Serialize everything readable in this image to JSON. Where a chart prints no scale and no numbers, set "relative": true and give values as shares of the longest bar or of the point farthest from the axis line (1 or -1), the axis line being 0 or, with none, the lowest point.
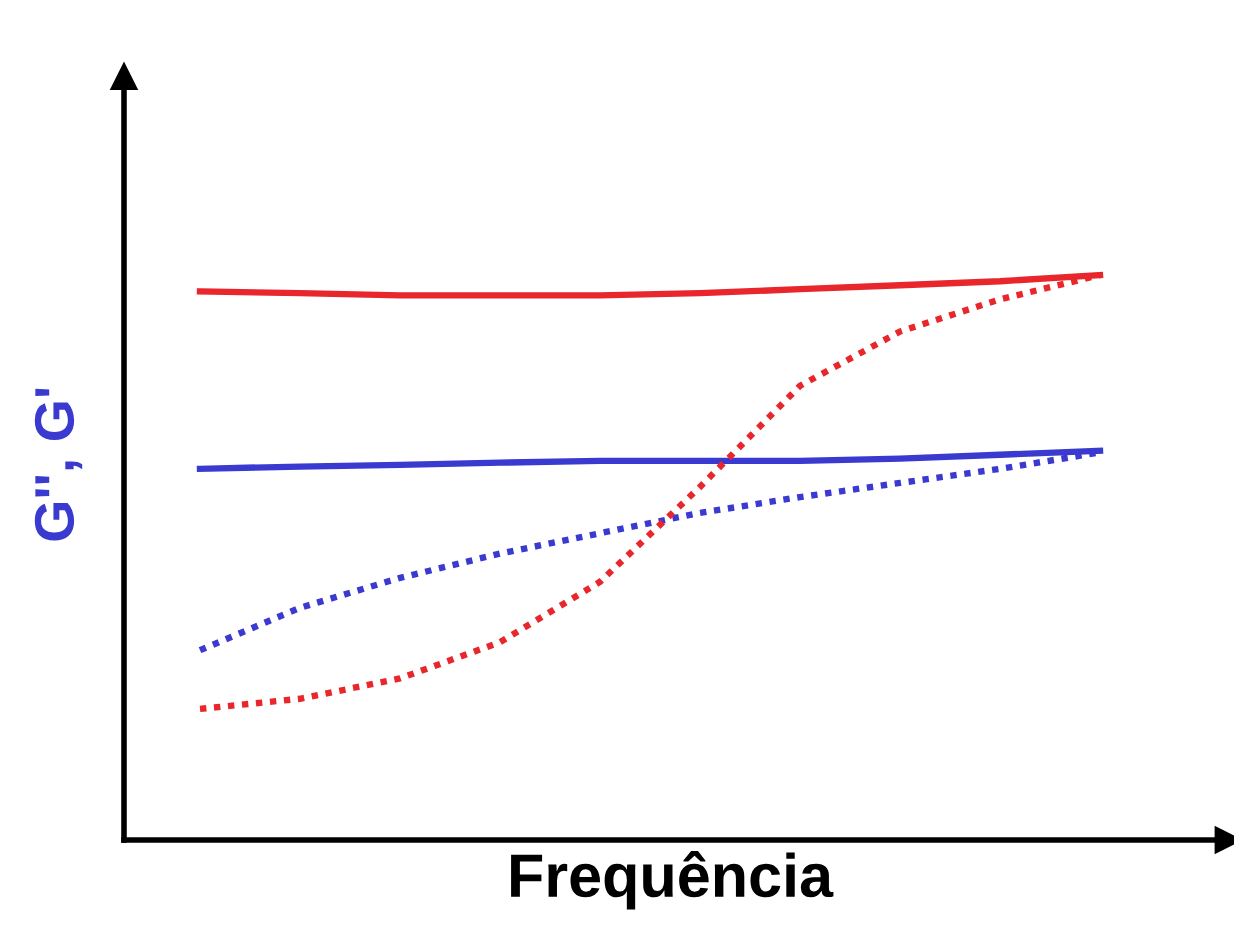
{
  "chart_data": {
    "type": "line",
    "relative": true,
    "xlabel": "Frequência",
    "ylabel": "G'', G'",
    "tick_labels": false,
    "grid": false,
    "legend": false,
    "categories": [
      null,
      null,
      null,
      null,
      null,
      null,
      null,
      null,
      null,
      null
    ],
    "series": [
      {
        "color": "#e8262b",
        "line_style": "solid",
        "values": [
          0.971,
          0.968,
          0.964,
          0.964,
          0.964,
          0.968,
          0.975,
          0.982,
          0.989,
          1.0
        ]
      },
      {
        "color": "#3a3ad0",
        "line_style": "solid",
        "values": [
          0.657,
          0.661,
          0.664,
          0.668,
          0.671,
          0.671,
          0.671,
          0.675,
          0.682,
          0.689
        ]
      },
      {
        "color": "#3a3ad0",
        "line_style": "dotted",
        "values": [
          0.336,
          0.411,
          0.464,
          0.507,
          0.543,
          0.579,
          0.607,
          0.632,
          0.657,
          0.686
        ]
      },
      {
        "color": "#e8262b",
        "line_style": "dotted",
        "values": [
          0.232,
          0.25,
          0.286,
          0.35,
          0.457,
          0.625,
          0.804,
          0.9,
          0.957,
          1.0
        ]
      }
    ]
  }
}
